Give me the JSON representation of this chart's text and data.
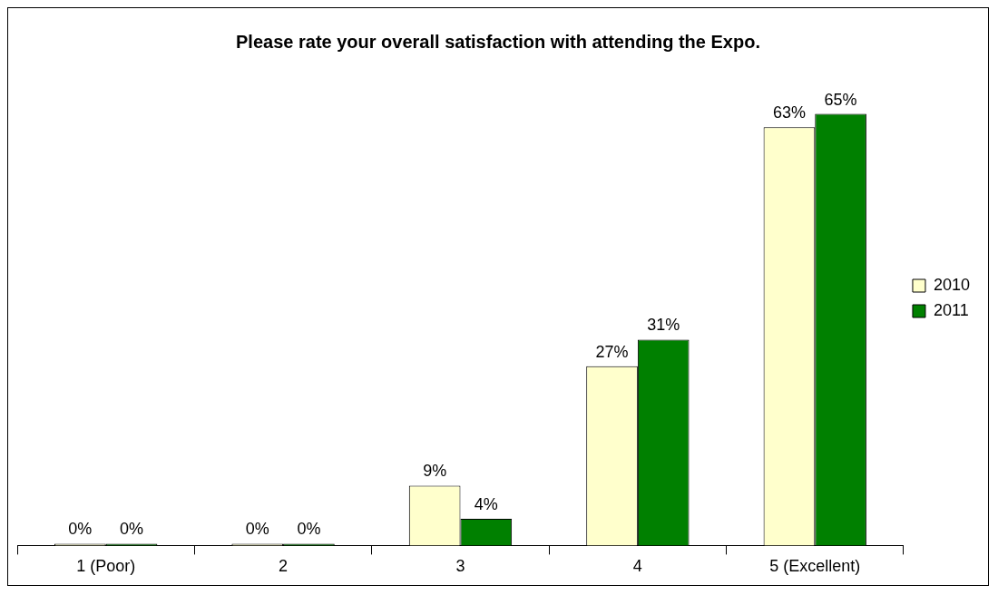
{
  "chart_data": {
    "type": "bar",
    "title": "Please rate your overall satisfaction with attending the Expo.",
    "categories": [
      "1 (Poor)",
      "2",
      "3",
      "4",
      "5 (Excellent)"
    ],
    "series": [
      {
        "name": "2010",
        "color": "#ffffcc",
        "values": [
          0,
          0,
          9,
          27,
          63
        ],
        "value_labels": [
          "0%",
          "0%",
          "9%",
          "27%",
          "63%"
        ]
      },
      {
        "name": "2011",
        "color": "#008000",
        "values": [
          0,
          0,
          4,
          31,
          65
        ],
        "value_labels": [
          "0%",
          "0%",
          "4%",
          "31%",
          "65%"
        ]
      }
    ],
    "legend": "right",
    "grid": false
  }
}
